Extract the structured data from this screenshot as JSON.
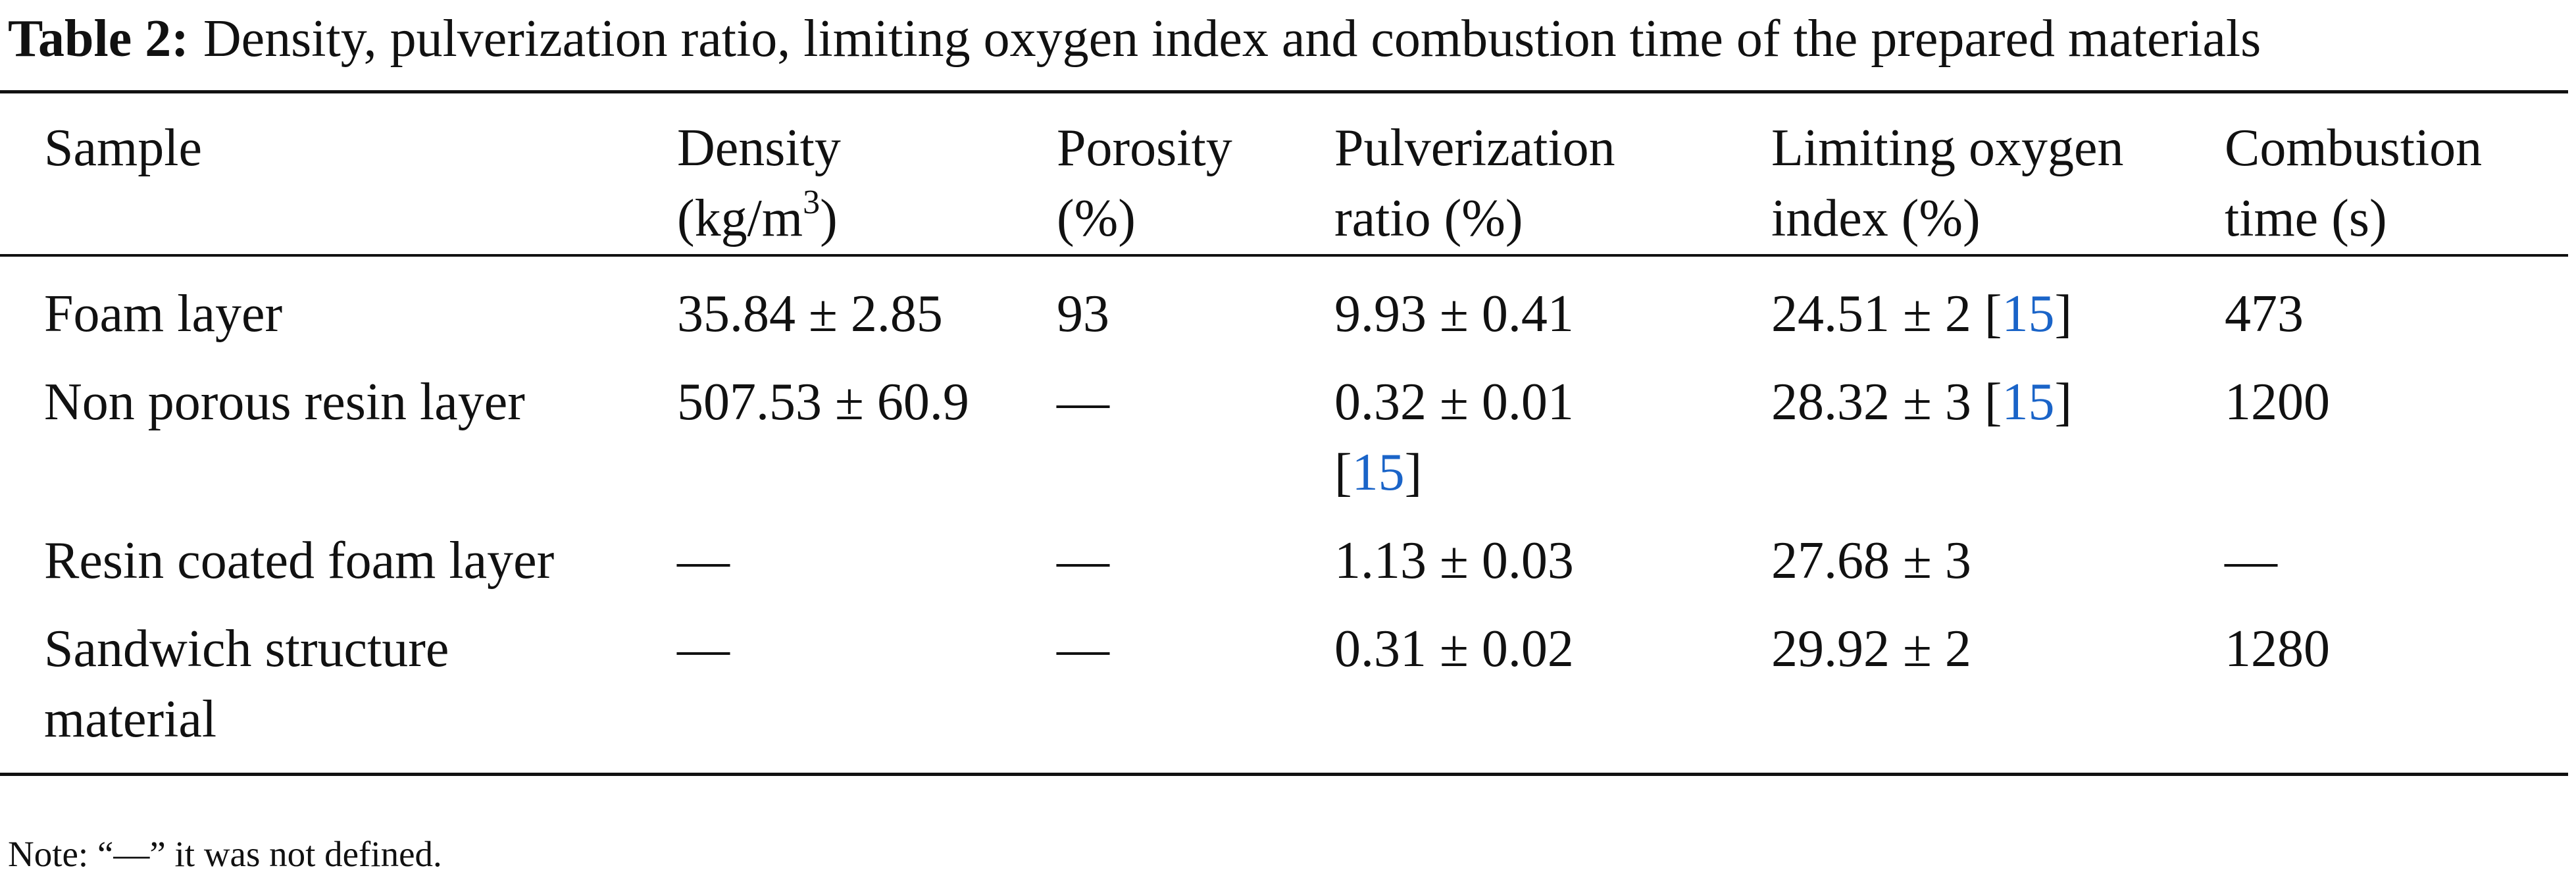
{
  "caption": {
    "label": "Table 2:",
    "text": "Density, pulverization ratio, limiting oxygen index and combustion time of the prepared materials"
  },
  "table": {
    "header": [
      "Sample",
      {
        "pre": "Density (kg/m",
        "sup": "3",
        "post": ")"
      },
      "Porosity (%)",
      "Pulverization ratio (%)",
      "Limiting oxygen index (%)",
      "Combustion time (s)"
    ],
    "rows": [
      [
        "Foam layer",
        "35.84 ± 2.85",
        "93",
        "9.93 ± 0.41",
        {
          "pre": "24.51 ± 2 [",
          "ref": "15",
          "post": "]"
        },
        "473"
      ],
      [
        "Non porous resin layer",
        "507.53 ± 60.9",
        "—",
        {
          "pre": "0.32 ± 0.01 [",
          "ref": "15",
          "post": "]"
        },
        {
          "pre": "28.32 ± 3 [",
          "ref": "15",
          "post": "]"
        },
        "1200"
      ],
      [
        "Resin coated foam layer",
        "—",
        "—",
        "1.13 ± 0.03",
        "27.68 ± 3",
        "—"
      ],
      [
        "Sandwich structure material",
        "—",
        "—",
        "0.31 ± 0.02",
        "29.92 ± 2",
        "1280"
      ]
    ]
  },
  "note": "Note: “—” it was not defined."
}
